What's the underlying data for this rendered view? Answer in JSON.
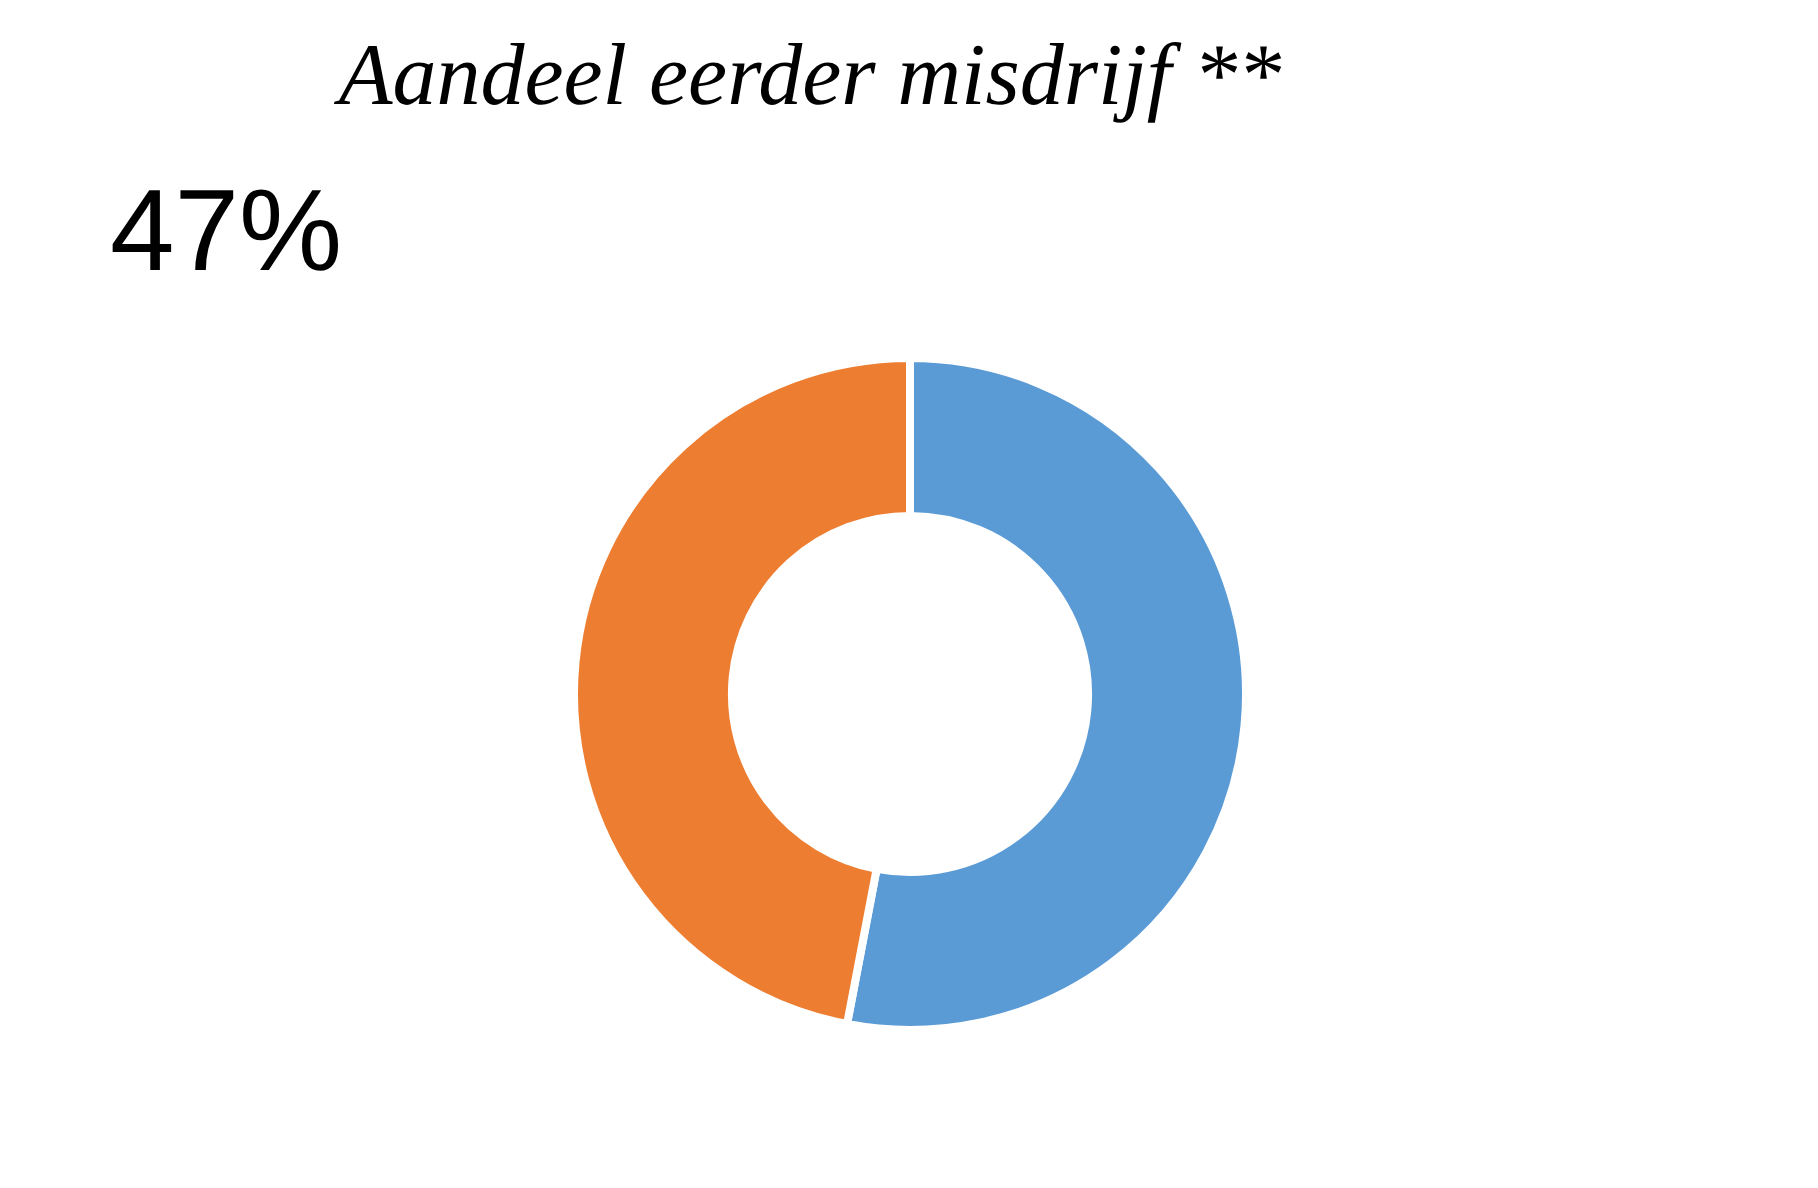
{
  "chart_data": {
    "type": "donut",
    "title": "Aandeel eerder misdrijf **",
    "categories": [
      null,
      null
    ],
    "values": [
      53,
      47
    ],
    "colors": [
      "#5b9bd5",
      "#ed7d31"
    ],
    "annotations": [
      "47%"
    ],
    "legend": false
  }
}
